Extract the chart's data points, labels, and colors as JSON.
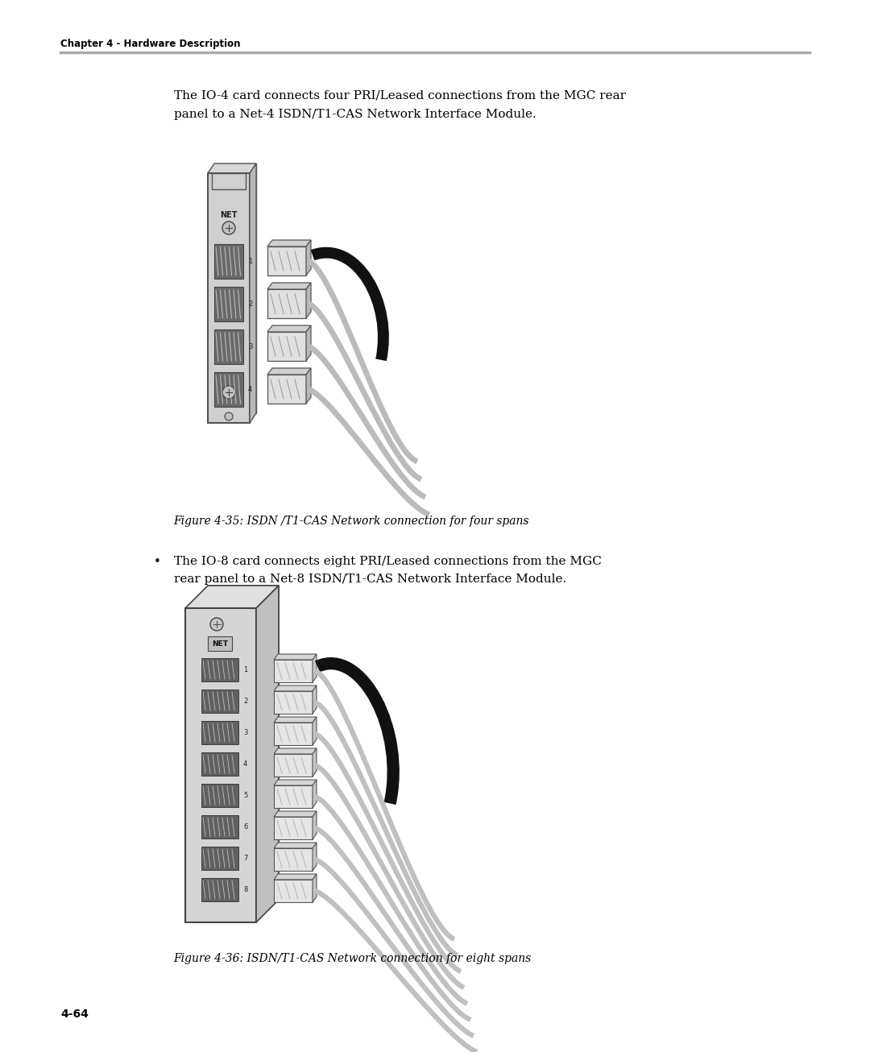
{
  "bg_color": "#ffffff",
  "header_text": "Chapter 4 - Hardware Description",
  "header_line_color": "#aaaaaa",
  "page_number": "4-64",
  "para1_line1": "The IO-4 card connects four PRI/Leased connections from the MGC rear",
  "para1_line2": "panel to a Net-4 ISDN/T1-CAS Network Interface Module.",
  "fig1_caption": "Figure 4-35: ISDN /T1-CAS Network connection for four spans",
  "bullet_char": "•",
  "bullet_line1": "The IO-8 card connects eight PRI/Leased connections from the MGC",
  "bullet_line2": "rear panel to a Net-8 ISDN/T1-CAS Network Interface Module.",
  "fig2_caption": "Figure 4-36: ISDN/T1-CAS Network connection for eight spans",
  "text_color": "#000000",
  "header_font_size": 8.5,
  "body_font_size": 11,
  "caption_font_size": 10,
  "page_num_font_size": 10
}
